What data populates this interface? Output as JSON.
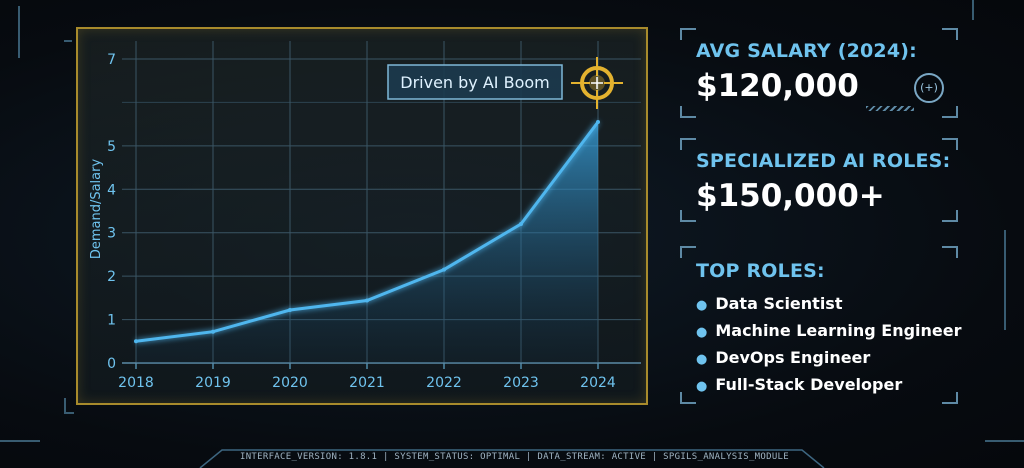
{
  "chart_data": {
    "type": "line",
    "x": [
      "2018",
      "2019",
      "2020",
      "2021",
      "2022",
      "2023",
      "2024"
    ],
    "categories": [
      "2018",
      "2019",
      "2020",
      "2021",
      "2022",
      "2023",
      "2024"
    ],
    "values": [
      0.5,
      0.72,
      1.22,
      1.44,
      2.15,
      3.2,
      5.55
    ],
    "ylabel": "Demand/Salary",
    "yticks": [
      "0",
      "1",
      "2",
      "3",
      "4",
      "5",
      "7"
    ],
    "ylim": [
      0,
      7
    ],
    "grid": true,
    "annotation": "Driven by AI Boom"
  },
  "colors": {
    "line": "#4fb6ee",
    "accent_gold": "#e3b22f",
    "label_blue": "#6fc3ee",
    "panel_border": "#a88b2c"
  },
  "cards": {
    "avg_salary": {
      "label": "AVG SALARY (2024):",
      "value": "$120,000"
    },
    "specialized": {
      "label": "SPECIALIZED AI ROLES:",
      "value": "$150,000+"
    },
    "top_roles": {
      "label": "TOP ROLES:",
      "items": [
        "Data Scientist",
        "Machine Learning Engineer",
        "DevOps Engineer",
        "Full-Stack Developer"
      ]
    }
  },
  "icons": {
    "target": "crosshair-icon",
    "fab": "robot-face-icon",
    "bullet": "bullet-dot"
  },
  "fab_label": "(+)",
  "status_bar": "INTERFACE_VERSION: 1.8.1 | SYSTEM_STATUS: OPTIMAL | DATA_STREAM: ACTIVE | SPGILS_ANALYSIS_MODULE"
}
